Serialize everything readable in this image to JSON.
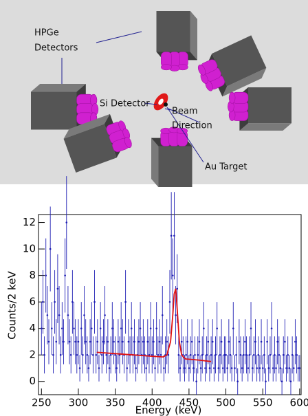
{
  "diagram": {
    "labels": [
      "HPGe",
      "Detectors",
      "Si Detector",
      "Beam",
      "Direction",
      "Au Target"
    ]
  },
  "chart_data": {
    "type": "errorbar",
    "y_label": "Counts/2 keV",
    "x_label": "Energy (keV)",
    "xlim": [
      246,
      602
    ],
    "ylim": [
      -1,
      12.6
    ],
    "xticks": [
      250,
      300,
      350,
      400,
      450,
      500,
      550,
      600
    ],
    "yticks": [
      0,
      2,
      4,
      6,
      8,
      10,
      12
    ],
    "color": "#1f1fb4",
    "x": [
      250,
      252,
      254,
      256,
      258,
      260,
      262,
      264,
      266,
      268,
      270,
      272,
      274,
      276,
      278,
      280,
      282,
      284,
      286,
      288,
      290,
      292,
      294,
      296,
      298,
      300,
      302,
      304,
      306,
      308,
      310,
      312,
      314,
      316,
      318,
      320,
      322,
      324,
      326,
      328,
      330,
      332,
      334,
      336,
      338,
      340,
      342,
      344,
      346,
      348,
      350,
      352,
      354,
      356,
      358,
      360,
      362,
      364,
      366,
      368,
      370,
      372,
      374,
      376,
      378,
      380,
      382,
      384,
      386,
      388,
      390,
      392,
      394,
      396,
      398,
      400,
      402,
      404,
      406,
      408,
      410,
      412,
      414,
      416,
      418,
      420,
      422,
      424,
      426,
      428,
      430,
      432,
      434,
      436,
      438,
      440,
      442,
      444,
      446,
      448,
      450,
      452,
      454,
      456,
      458,
      460,
      462,
      464,
      466,
      468,
      470,
      472,
      474,
      476,
      478,
      480,
      482,
      484,
      486,
      488,
      490,
      492,
      494,
      496,
      498,
      500,
      502,
      504,
      506,
      508,
      510,
      512,
      514,
      516,
      518,
      520,
      522,
      524,
      526,
      528,
      530,
      532,
      534,
      536,
      538,
      540,
      542,
      544,
      546,
      548,
      550,
      552,
      554,
      556,
      558,
      560,
      562,
      564,
      566,
      568,
      570,
      572,
      574,
      576,
      578,
      580,
      582,
      584,
      586,
      588,
      590,
      592,
      594,
      596,
      598,
      600
    ],
    "values": [
      4,
      6,
      2,
      8,
      5,
      3,
      10,
      4,
      2,
      6,
      3,
      7,
      5,
      2,
      4,
      3,
      8,
      12,
      5,
      3,
      2,
      6,
      4,
      3,
      2,
      3,
      1,
      4,
      2,
      5,
      3,
      2,
      1,
      3,
      4,
      2,
      6,
      2,
      3,
      1,
      4,
      2,
      3,
      5,
      2,
      3,
      1,
      2,
      4,
      3,
      2,
      1,
      3,
      2,
      4,
      3,
      2,
      6,
      1,
      3,
      2,
      4,
      2,
      3,
      1,
      2,
      3,
      4,
      2,
      3,
      2,
      1,
      3,
      2,
      4,
      2,
      3,
      1,
      4,
      2,
      3,
      2,
      5,
      1,
      2,
      3,
      2,
      6,
      11,
      8,
      11,
      5,
      7,
      2,
      1,
      3,
      2,
      1,
      2,
      3,
      1,
      2,
      3,
      1,
      2,
      0,
      2,
      3,
      1,
      2,
      4,
      1,
      2,
      3,
      1,
      2,
      3,
      1,
      2,
      4,
      1,
      2,
      3,
      1,
      2,
      2,
      1,
      3,
      2,
      1,
      4,
      1,
      2,
      0,
      3,
      2,
      1,
      2,
      3,
      2,
      1,
      2,
      4,
      1,
      2,
      3,
      1,
      2,
      1,
      3,
      1,
      2,
      0,
      3,
      1,
      2,
      4,
      1,
      2,
      1,
      3,
      2,
      1,
      0,
      2,
      3,
      1,
      2,
      1,
      0,
      2,
      1,
      3,
      2,
      1,
      1
    ],
    "errors": [
      2,
      2.4,
      1.4,
      2.8,
      2.2,
      1.7,
      3.2,
      2,
      1.4,
      2.4,
      1.7,
      2.6,
      2.2,
      1.4,
      2,
      1.7,
      2.8,
      3.5,
      2.2,
      1.7,
      1.4,
      2.4,
      2,
      1.7,
      1.4,
      1.7,
      1,
      2,
      1.4,
      2.2,
      1.7,
      1.4,
      1,
      1.7,
      2,
      1.4,
      2.4,
      1.4,
      1.7,
      1,
      2,
      1.4,
      1.7,
      2.2,
      1.4,
      1.7,
      1,
      1.4,
      2,
      1.7,
      1.4,
      1,
      1.7,
      1.4,
      2,
      1.7,
      1.4,
      2.4,
      1,
      1.7,
      1.4,
      2,
      1.4,
      1.7,
      1,
      1.4,
      1.7,
      2,
      1.4,
      1.7,
      1.4,
      1,
      1.7,
      1.4,
      2,
      1.4,
      1.7,
      1,
      2,
      1.4,
      1.7,
      1.4,
      2.2,
      1,
      1.4,
      1.7,
      1.4,
      2.4,
      3.3,
      2.8,
      3.3,
      2.2,
      2.6,
      1.4,
      1,
      1.7,
      1.4,
      1,
      1.4,
      1.7,
      1,
      1.4,
      1.7,
      1,
      1.4,
      1,
      1.4,
      1.7,
      1,
      1.4,
      2,
      1,
      1.4,
      1.7,
      1,
      1.4,
      1.7,
      1,
      1.4,
      2,
      1,
      1.4,
      1.7,
      1,
      1.4,
      1.4,
      1,
      1.7,
      1.4,
      1,
      2,
      1,
      1.4,
      1,
      1.7,
      1.4,
      1,
      1.4,
      1.7,
      1.4,
      1,
      1.4,
      2,
      1,
      1.4,
      1.7,
      1,
      1.4,
      1,
      1.7,
      1,
      1.4,
      1,
      1.7,
      1,
      1.4,
      2,
      1,
      1.4,
      1,
      1.7,
      1.4,
      1,
      1,
      1.4,
      1.7,
      1,
      1.4,
      1,
      1,
      1.4,
      1,
      1.7,
      1.4,
      1,
      1
    ],
    "fit": {
      "color": "#e01010",
      "x": [
        325,
        350,
        375,
        400,
        415,
        420,
        425,
        428,
        430,
        432,
        434,
        437,
        440,
        445,
        455,
        465,
        480
      ],
      "values": [
        2.2,
        2.1,
        2.0,
        1.9,
        1.85,
        2.0,
        3.0,
        5.0,
        6.6,
        7.0,
        5.5,
        3.0,
        2.0,
        1.7,
        1.65,
        1.6,
        1.5
      ]
    }
  }
}
